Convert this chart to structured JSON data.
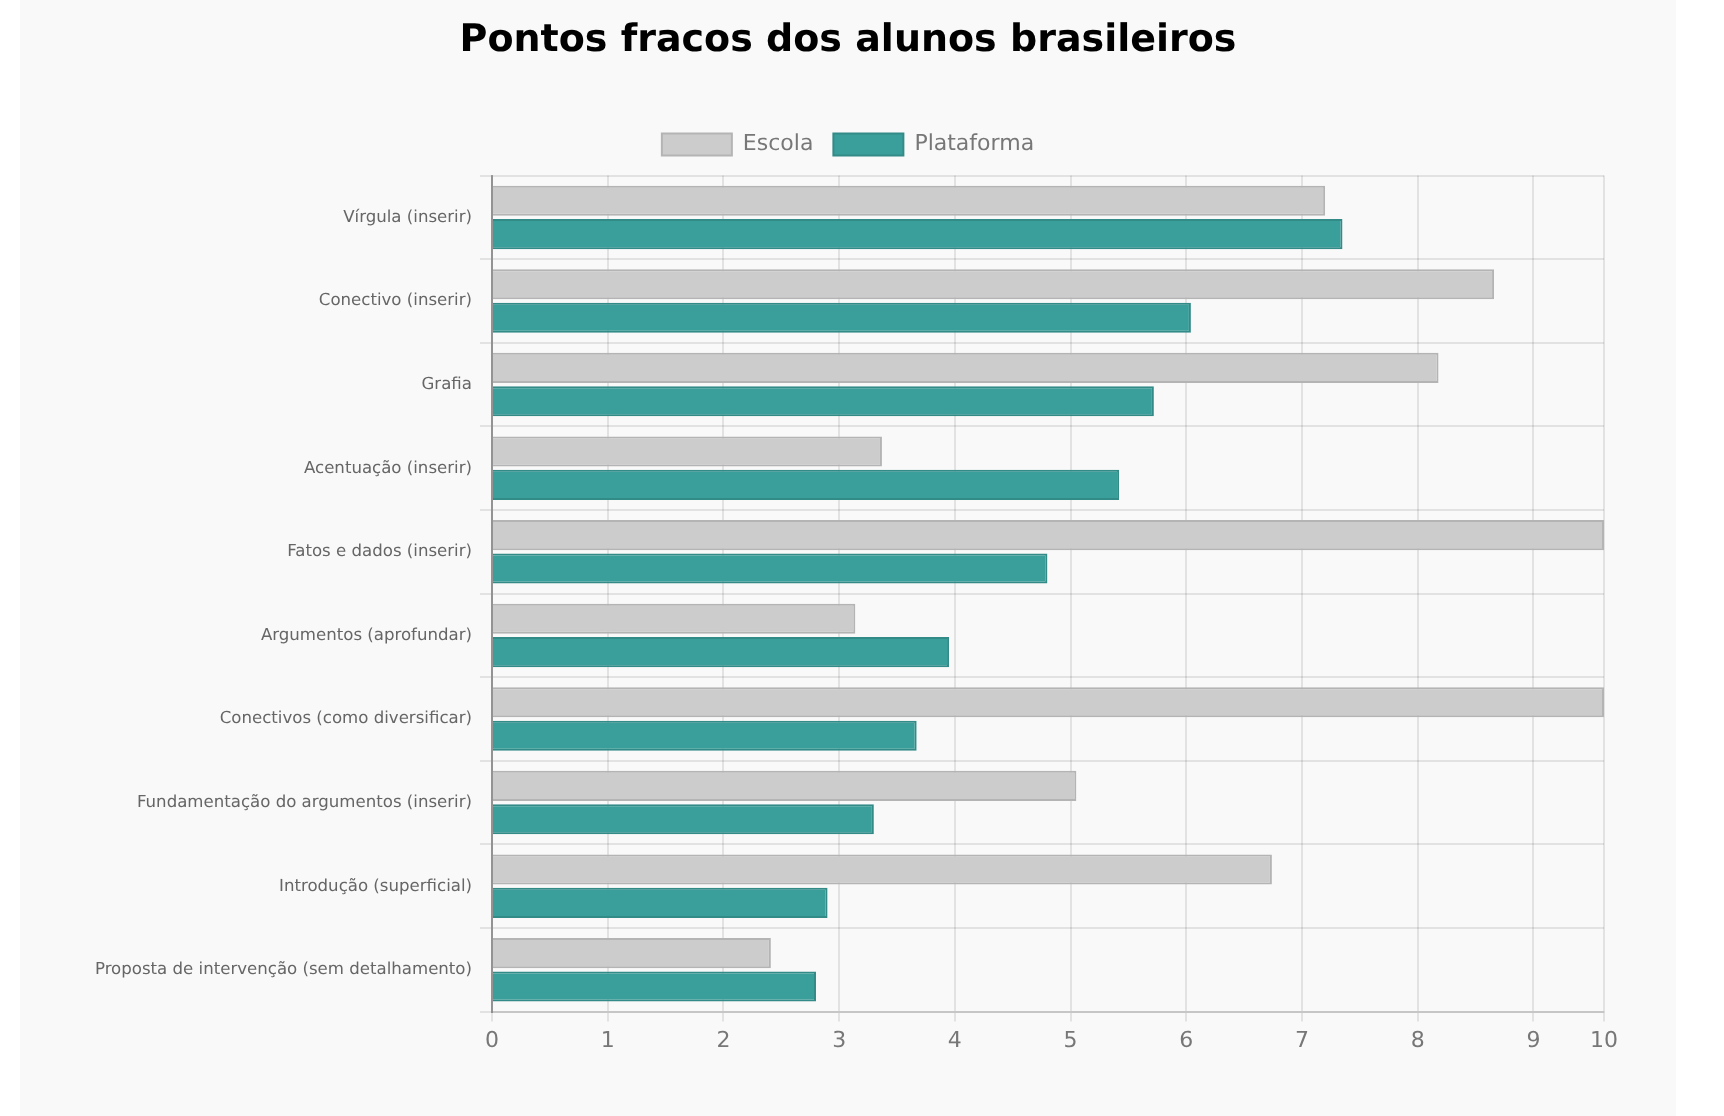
{
  "chart_data": {
    "type": "bar",
    "orientation": "horizontal",
    "title": "Pontos fracos dos alunos brasileiros",
    "categories": [
      "Vírgula (inserir)",
      "Conectivo (inserir)",
      "Grafia",
      "Acentuação (inserir)",
      "Fatos e dados (inserir)",
      "Argumentos (aprofundar)",
      "Conectivos (como diversificar)",
      "Fundamentação do argumentos (inserir)",
      "Introdução (superficial)",
      "Proposta de intervenção (sem detalhamento)"
    ],
    "series": [
      {
        "name": "Escola",
        "color": "#cccccc",
        "values": [
          7.2,
          8.66,
          8.18,
          3.37,
          9.61,
          3.14,
          9.61,
          5.05,
          6.74,
          2.41
        ]
      },
      {
        "name": "Plataforma",
        "color": "#3a9e9a",
        "values": [
          7.35,
          6.04,
          5.72,
          5.42,
          4.8,
          3.95,
          3.67,
          3.3,
          2.9,
          2.8
        ]
      }
    ],
    "xlim": [
      0,
      9.61
    ],
    "xticks": [
      0,
      1,
      2,
      3,
      4,
      5,
      6,
      7,
      8,
      9,
      {
        "value": 9.61,
        "label": "10"
      }
    ],
    "grid": true,
    "legend": "top"
  }
}
